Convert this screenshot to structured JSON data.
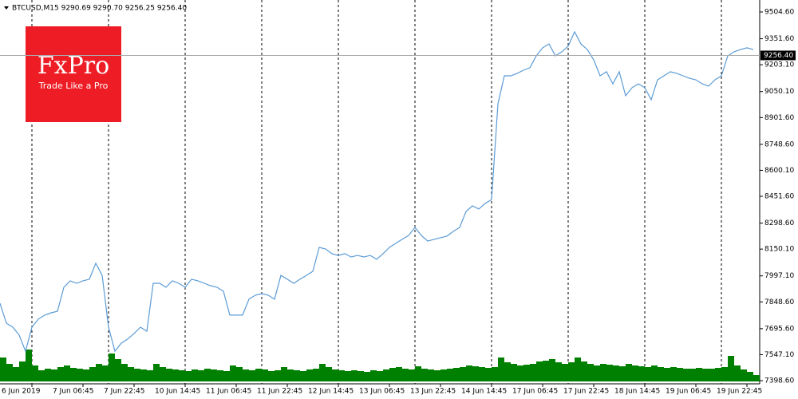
{
  "chart_data": {
    "type": "line",
    "header": "BTCUSD,M15  9290.69 9290.70 9256.25 9256.40",
    "logo_title": "FxPro",
    "logo_subtitle": "Trade Like a Pro",
    "x_labels": [
      "6 Jun 2019",
      "7 Jun 06:45",
      "7 Jun 22:45",
      "10 Jun 14:45",
      "11 Jun 06:45",
      "11 Jun 22:45",
      "12 Jun 14:45",
      "13 Jun 06:45",
      "13 Jun 22:45",
      "14 Jun 14:45",
      "17 Jun 06:45",
      "17 Jun 22:45",
      "18 Jun 14:45",
      "19 Jun 06:45",
      "19 Jun 22:45"
    ],
    "ylim": [
      7385,
      9573
    ],
    "yticks": [
      {
        "value": 9504.6,
        "label": "9504.60"
      },
      {
        "value": 9351.6,
        "label": "9351.60"
      },
      {
        "value": 9203.1,
        "label": "9203.10"
      },
      {
        "value": 9050.1,
        "label": "9050.10"
      },
      {
        "value": 8901.6,
        "label": "8901.60"
      },
      {
        "value": 8748.6,
        "label": "8748.60"
      },
      {
        "value": 8600.1,
        "label": "8600.10"
      },
      {
        "value": 8451.6,
        "label": "8451.60"
      },
      {
        "value": 8298.6,
        "label": "8298.60"
      },
      {
        "value": 8150.1,
        "label": "8150.10"
      },
      {
        "value": 7997.1,
        "label": "7997.10"
      },
      {
        "value": 7848.6,
        "label": "7848.60"
      },
      {
        "value": 7695.6,
        "label": "7695.60"
      },
      {
        "value": 7547.1,
        "label": "7547.10"
      },
      {
        "value": 7398.6,
        "label": "7398.60"
      }
    ],
    "last_price": {
      "value": 9256.4,
      "label": "9256.40"
    },
    "series": [
      {
        "name": "BTCUSD",
        "color": "#5b9bd5",
        "values": [
          7841,
          7727,
          7704,
          7659,
          7567,
          7704,
          7750,
          7773,
          7786,
          7795,
          7932,
          7969,
          7955,
          7969,
          7978,
          8069,
          8000,
          7704,
          7567,
          7613,
          7636,
          7668,
          7704,
          7681,
          7955,
          7955,
          7932,
          7969,
          7955,
          7932,
          7978,
          7969,
          7955,
          7941,
          7932,
          7909,
          7773,
          7773,
          7773,
          7864,
          7887,
          7896,
          7887,
          7864,
          8000,
          7978,
          7955,
          7978,
          8000,
          8023,
          8160,
          8151,
          8124,
          8114,
          8124,
          8105,
          8114,
          8105,
          8114,
          8092,
          8124,
          8160,
          8183,
          8206,
          8228,
          8274,
          8228,
          8196,
          8206,
          8215,
          8224,
          8251,
          8274,
          8365,
          8397,
          8379,
          8411,
          8433,
          8980,
          9140,
          9140,
          9154,
          9172,
          9186,
          9254,
          9300,
          9322,
          9254,
          9277,
          9309,
          9391,
          9322,
          9290,
          9231,
          9140,
          9163,
          9094,
          9163,
          9026,
          9072,
          9094,
          9072,
          9003,
          9117,
          9140,
          9163,
          9154,
          9140,
          9126,
          9117,
          9094,
          9081,
          9117,
          9140,
          9254,
          9277,
          9290,
          9300,
          9290
        ]
      },
      {
        "name": "Volume",
        "color": "#008000",
        "values": [
          30,
          22,
          18,
          25,
          40,
          20,
          14,
          16,
          15,
          18,
          20,
          17,
          16,
          15,
          18,
          22,
          20,
          35,
          28,
          22,
          18,
          16,
          15,
          14,
          22,
          18,
          16,
          15,
          14,
          13,
          15,
          14,
          16,
          15,
          14,
          13,
          20,
          18,
          15,
          14,
          16,
          15,
          13,
          14,
          18,
          15,
          14,
          13,
          15,
          16,
          22,
          18,
          15,
          14,
          13,
          14,
          13,
          12,
          14,
          13,
          15,
          17,
          18,
          16,
          15,
          19,
          16,
          15,
          14,
          15,
          16,
          17,
          18,
          20,
          19,
          18,
          17,
          18,
          30,
          24,
          22,
          20,
          21,
          22,
          25,
          26,
          28,
          24,
          22,
          24,
          30,
          25,
          22,
          20,
          22,
          21,
          20,
          19,
          22,
          20,
          19,
          18,
          20,
          18,
          17,
          18,
          17,
          16,
          16,
          17,
          16,
          16,
          17,
          18,
          32,
          20,
          15,
          12,
          8
        ]
      }
    ]
  }
}
